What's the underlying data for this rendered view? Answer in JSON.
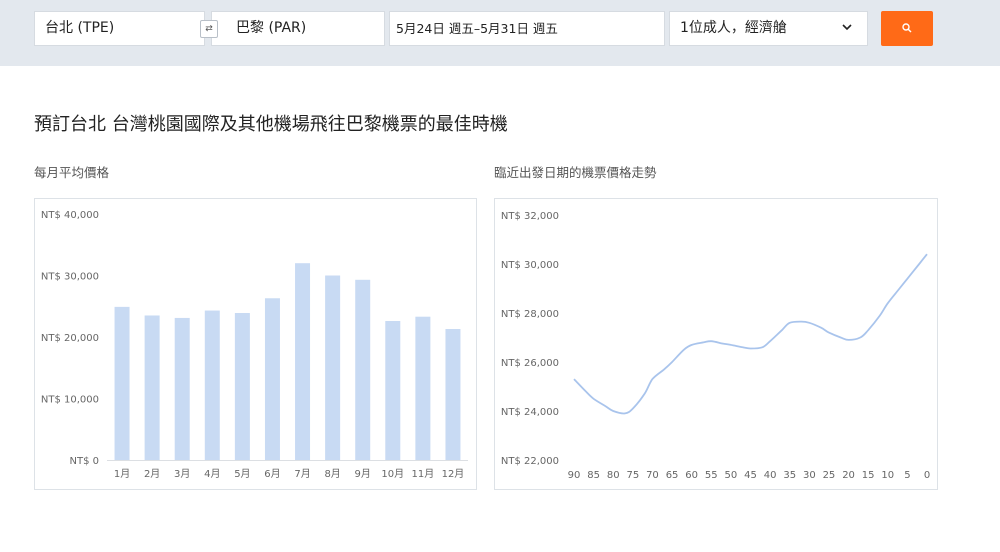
{
  "search": {
    "origin": "台北 (TPE)",
    "destination": "巴黎 (PAR)",
    "dates": "5月24日 週五–5月31日 週五",
    "passengers": "1位成人，經濟艙",
    "swap_icon": "swap-arrows-icon",
    "dropdown_icon": "chevron-down-icon",
    "search_icon": "search-icon",
    "accent_color": "#ff6a17"
  },
  "page": {
    "title": "預訂台北 台灣桃園國際及其他機場飛往巴黎機票的最佳時機"
  },
  "chart_data": [
    {
      "type": "bar",
      "title": "每月平均價格",
      "categories": [
        "1月",
        "2月",
        "3月",
        "4月",
        "5月",
        "6月",
        "7月",
        "8月",
        "9月",
        "10月",
        "11月",
        "12月"
      ],
      "values": [
        24900,
        23500,
        23100,
        24300,
        23900,
        26300,
        32000,
        30000,
        29300,
        22600,
        23300,
        21300
      ],
      "yticks": [
        "NT$ 0",
        "NT$ 10,000",
        "NT$ 20,000",
        "NT$ 30,000",
        "NT$ 40,000"
      ],
      "ylim": [
        0,
        40000
      ],
      "bar_color": "#c8daf3",
      "grid": false
    },
    {
      "type": "line",
      "title": "臨近出發日期的機票價格走勢",
      "xticks": [
        "90",
        "85",
        "80",
        "75",
        "70",
        "65",
        "60",
        "55",
        "50",
        "45",
        "40",
        "35",
        "30",
        "25",
        "20",
        "15",
        "10",
        "5",
        "0"
      ],
      "x": [
        90,
        87,
        85,
        82,
        80,
        77,
        75,
        72,
        70,
        67,
        65,
        62,
        60,
        57,
        55,
        52,
        50,
        47,
        45,
        42,
        40,
        37,
        35,
        32,
        30,
        27,
        25,
        22,
        20,
        17,
        15,
        12,
        10,
        7,
        5,
        2,
        0
      ],
      "values": [
        25300,
        24800,
        24500,
        24200,
        24000,
        23900,
        24100,
        24700,
        25300,
        25700,
        26000,
        26500,
        26700,
        26800,
        26850,
        26750,
        26700,
        26600,
        26550,
        26600,
        26850,
        27300,
        27600,
        27650,
        27600,
        27400,
        27200,
        27000,
        26900,
        27000,
        27300,
        27900,
        28400,
        29000,
        29400,
        30000,
        30400
      ],
      "yticks": [
        "NT$ 22,000",
        "NT$ 24,000",
        "NT$ 26,000",
        "NT$ 28,000",
        "NT$ 30,000",
        "NT$ 32,000"
      ],
      "ylim": [
        22000,
        32000
      ],
      "xlim": [
        90,
        0
      ],
      "line_color": "#a9c4ec",
      "grid": false
    }
  ]
}
